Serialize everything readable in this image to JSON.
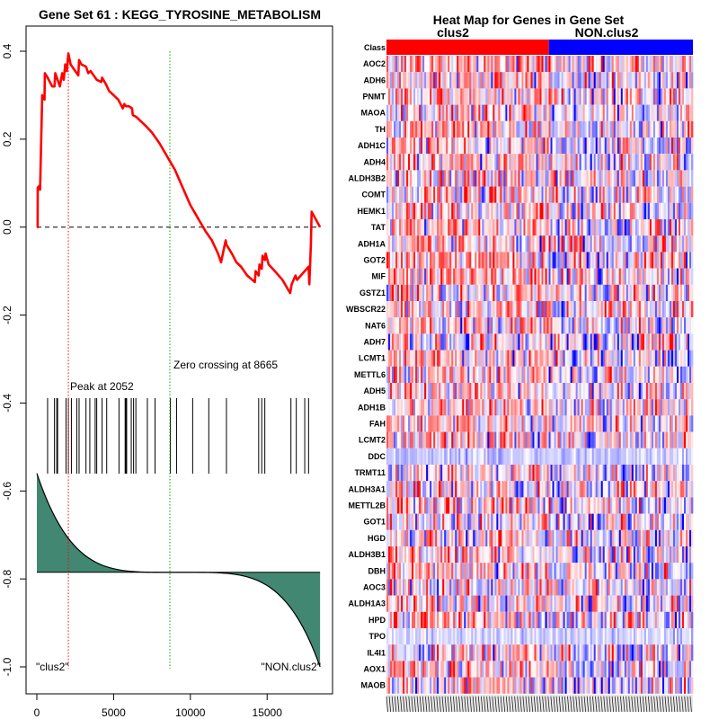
{
  "chart_data": [
    {
      "type": "line",
      "title": "Gene Set  61 : KEGG_TYROSINE_METABOLISM",
      "xlim": [
        0,
        18500
      ],
      "ylim": [
        -1.0,
        0.4
      ],
      "x_ticks": [
        "0",
        "5000",
        "10000",
        "15000"
      ],
      "x_tick_values": [
        0,
        5000,
        10000,
        15000
      ],
      "y_ticks": [
        "-1.0",
        "-0.8",
        "-0.6",
        "-0.4",
        "-0.2",
        "0.0",
        "0.2",
        "0.4"
      ],
      "y_tick_values": [
        -1.0,
        -0.8,
        -0.6,
        -0.4,
        -0.2,
        0.0,
        0.2,
        0.4
      ],
      "series": [
        {
          "name": "running enrichment score",
          "color": "#ff0000",
          "x": [
            0,
            50,
            60,
            200,
            210,
            350,
            500,
            520,
            700,
            1000,
            1150,
            1200,
            1300,
            1500,
            1650,
            1750,
            1850,
            1950,
            2052,
            2200,
            2400,
            2700,
            2750,
            2900,
            3200,
            3350,
            3500,
            3700,
            3900,
            4200,
            4250,
            4500,
            4700,
            5000,
            5300,
            5600,
            5700,
            5800,
            6000,
            6200,
            6250,
            6500,
            6800,
            7100,
            7500,
            8000,
            8665,
            9000,
            9500,
            10000,
            10500,
            11000,
            11400,
            11800,
            12000,
            12300,
            12350,
            12700,
            13000,
            13300,
            13700,
            14200,
            14250,
            14450,
            14500,
            14650,
            14700,
            14850,
            14900,
            15100,
            15500,
            16000,
            16500,
            16600,
            16850,
            16950,
            17200,
            17700,
            17750,
            17850,
            17900,
            18450
          ],
          "y": [
            0.0,
            0.0,
            0.09,
            0.095,
            0.085,
            0.3,
            0.29,
            0.35,
            0.34,
            0.32,
            0.32,
            0.35,
            0.34,
            0.32,
            0.35,
            0.335,
            0.37,
            0.355,
            0.395,
            0.37,
            0.36,
            0.345,
            0.38,
            0.37,
            0.365,
            0.35,
            0.355,
            0.345,
            0.335,
            0.33,
            0.34,
            0.325,
            0.31,
            0.3,
            0.29,
            0.27,
            0.28,
            0.275,
            0.275,
            0.27,
            0.255,
            0.25,
            0.24,
            0.23,
            0.215,
            0.19,
            0.15,
            0.13,
            0.09,
            0.05,
            0.02,
            -0.01,
            -0.03,
            -0.06,
            -0.08,
            -0.03,
            -0.04,
            -0.06,
            -0.08,
            -0.09,
            -0.11,
            -0.125,
            -0.1,
            -0.11,
            -0.085,
            -0.095,
            -0.065,
            -0.075,
            -0.06,
            -0.085,
            -0.1,
            -0.12,
            -0.15,
            -0.13,
            -0.11,
            -0.12,
            -0.11,
            -0.09,
            -0.13,
            -0.04,
            0.035,
            0.0
          ]
        }
      ],
      "hits": [
        2052,
        700,
        1350,
        1150,
        1300,
        2250,
        1900,
        2600,
        2750,
        3200,
        3450,
        3800,
        3900,
        4250,
        4550,
        5350,
        5750,
        5800,
        5850,
        6150,
        6300,
        6450,
        7200,
        7700,
        8700,
        9100,
        10150,
        11200,
        12350,
        14450,
        14650,
        14850,
        16550,
        16900,
        17450,
        17700
      ],
      "ranked_metric": {
        "positive_start": -0.56,
        "zero_level": -0.785,
        "negative_end": -1.0,
        "fill_color": "#418771"
      },
      "peak_x": 2052,
      "zero_crossing_x": 8665,
      "annotations": {
        "peak": "Peak at 2052",
        "zero": "Zero crossing at 8665",
        "left_label": "\"clus2\"",
        "right_label": "\"NON.clus2\""
      },
      "colors": {
        "zero_line": "#000000",
        "peak_line": "#ff0000",
        "zero_cross_line": "#00aa00",
        "hit_tick": "#000000"
      }
    },
    {
      "type": "heatmap",
      "title": "Heat Map for Genes in Gene Set",
      "class_row_label": "Class",
      "classes": [
        {
          "name": "clus2",
          "color": "#ff0000"
        },
        {
          "name": "NON.clus2",
          "color": "#0000ff"
        }
      ],
      "class_split_fraction": 0.53,
      "genes": [
        "AOC2",
        "ADH6",
        "PNMT",
        "MAOA",
        "TH",
        "ADH1C",
        "ADH4",
        "ALDH3B2",
        "COMT",
        "HEMK1",
        "TAT",
        "ADH1A",
        "GOT2",
        "MIF",
        "GSTZ1",
        "WBSCR22",
        "NAT6",
        "ADH7",
        "LCMT1",
        "METTL6",
        "ADH5",
        "ADH1B",
        "FAH",
        "LCMT2",
        "DDC",
        "TRMT11",
        "ALDH3A1",
        "METTL2B",
        "GOT1",
        "HGD",
        "ALDH3B1",
        "DBH",
        "AOC3",
        "ALDH1A3",
        "HPD",
        "TPO",
        "IL4I1",
        "AOX1",
        "MAOB"
      ],
      "gene_bias": [
        0.15,
        0.05,
        0.1,
        0.05,
        0.1,
        0.0,
        0.05,
        0.0,
        0.1,
        0.05,
        0.05,
        0.0,
        0.15,
        0.15,
        0.05,
        0.05,
        0.0,
        0.0,
        0.0,
        0.0,
        0.0,
        0.05,
        0.05,
        0.0,
        -0.6,
        0.0,
        0.0,
        0.0,
        0.0,
        0.0,
        0.0,
        0.0,
        0.0,
        0.0,
        0.0,
        -0.45,
        0.0,
        0.0,
        0.0
      ],
      "color_scale": [
        "#0000ff",
        "#ffffff",
        "#ff0000"
      ]
    }
  ]
}
